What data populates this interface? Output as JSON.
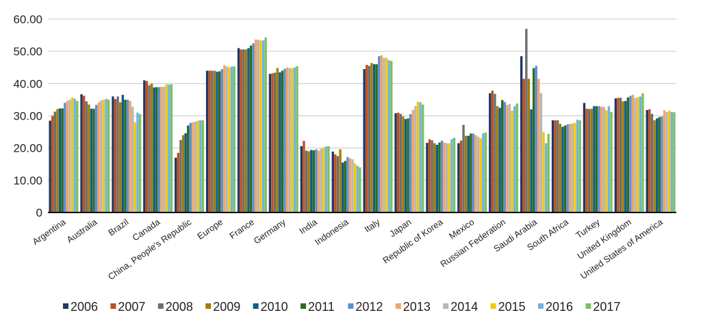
{
  "chart_data": {
    "type": "bar",
    "title": "",
    "xlabel": "",
    "ylabel": "",
    "ylim": [
      0,
      60
    ],
    "yticks": [
      "0",
      "10.00",
      "20.00",
      "30.00",
      "40.00",
      "50.00",
      "60.00"
    ],
    "grid": true,
    "legend_position": "bottom",
    "categories": [
      "Argentina",
      "Australia",
      "Brazil",
      "Canada",
      "China, People's Republic",
      "Europe",
      "France",
      "Germany",
      "India",
      "Indonesia",
      "Italy",
      "Japan",
      "Republic of Korea",
      "Mexico",
      "Russian Federation",
      "Saudi Arabia",
      "South Africa",
      "Turkey",
      "United Kingdom",
      "United States of America"
    ],
    "series": [
      {
        "name": "2006",
        "color": "#1f3864",
        "values": [
          28.5,
          36.7,
          36.0,
          41.0,
          17.0,
          44.0,
          51.0,
          43.0,
          20.6,
          18.9,
          44.5,
          30.8,
          21.6,
          21.5,
          37.0,
          48.5,
          28.6,
          34.0,
          35.4,
          31.8
        ]
      },
      {
        "name": "2007",
        "color": "#c0501a",
        "values": [
          30.0,
          36.2,
          35.2,
          40.8,
          18.5,
          44.0,
          50.6,
          43.2,
          22.2,
          18.0,
          45.8,
          31.0,
          22.7,
          22.3,
          37.8,
          41.5,
          28.6,
          32.2,
          35.6,
          32.0
        ]
      },
      {
        "name": "2008",
        "color": "#6d6e71",
        "values": [
          31.3,
          34.5,
          36.0,
          39.5,
          22.5,
          44.0,
          50.6,
          43.4,
          19.2,
          17.5,
          45.5,
          30.6,
          22.4,
          27.2,
          36.8,
          57.0,
          28.6,
          32.1,
          35.6,
          30.6
        ]
      },
      {
        "name": "2009",
        "color": "#a57c00",
        "values": [
          32.1,
          33.5,
          34.2,
          40.0,
          24.0,
          44.0,
          50.6,
          44.8,
          19.0,
          19.6,
          46.4,
          29.8,
          21.5,
          23.8,
          33.0,
          41.5,
          27.5,
          32.2,
          34.5,
          28.6
        ]
      },
      {
        "name": "2010",
        "color": "#0c5d8a",
        "values": [
          32.3,
          32.2,
          36.5,
          38.8,
          24.6,
          43.7,
          51.0,
          43.5,
          19.4,
          15.5,
          46.0,
          29.0,
          21.0,
          23.8,
          32.5,
          32.0,
          26.6,
          33.0,
          34.6,
          29.2
        ]
      },
      {
        "name": "2011",
        "color": "#2e6b1f",
        "values": [
          32.3,
          32.2,
          35.0,
          38.9,
          27.0,
          43.8,
          51.8,
          44.0,
          19.3,
          16.0,
          46.0,
          29.2,
          21.7,
          24.5,
          34.9,
          44.8,
          27.0,
          33.0,
          35.7,
          29.6
        ]
      },
      {
        "name": "2012",
        "color": "#5b8fd6",
        "values": [
          34.0,
          33.4,
          35.0,
          38.9,
          27.8,
          44.5,
          52.5,
          44.6,
          19.6,
          17.2,
          48.5,
          30.5,
          22.3,
          24.5,
          34.3,
          45.5,
          27.3,
          33.0,
          36.2,
          29.8
        ]
      },
      {
        "name": "2013",
        "color": "#f4a362",
        "values": [
          34.6,
          34.2,
          34.6,
          39.0,
          28.0,
          45.7,
          53.7,
          45.0,
          19.2,
          16.8,
          48.8,
          31.8,
          21.7,
          24.0,
          33.4,
          41.5,
          27.5,
          32.8,
          36.5,
          31.7
        ]
      },
      {
        "name": "2014",
        "color": "#b7b7b7",
        "values": [
          35.0,
          34.8,
          32.8,
          39.0,
          28.2,
          45.3,
          53.6,
          44.8,
          19.8,
          16.5,
          48.0,
          33.0,
          21.5,
          23.5,
          33.7,
          37.0,
          27.6,
          32.8,
          35.5,
          31.2
        ]
      },
      {
        "name": "2015",
        "color": "#f7c600",
        "values": [
          35.7,
          35.0,
          28.0,
          39.8,
          28.5,
          45.0,
          53.4,
          44.8,
          20.2,
          15.2,
          48.0,
          34.4,
          21.5,
          23.0,
          31.6,
          25.0,
          27.8,
          31.7,
          35.8,
          31.6
        ]
      },
      {
        "name": "2016",
        "color": "#6db3e6",
        "values": [
          35.3,
          35.3,
          31.0,
          39.7,
          28.6,
          45.3,
          53.4,
          45.0,
          20.5,
          14.5,
          47.3,
          34.2,
          22.8,
          24.6,
          33.0,
          21.5,
          28.8,
          33.0,
          36.0,
          31.2
        ]
      },
      {
        "name": "2017",
        "color": "#7cc15e",
        "values": [
          34.6,
          35.0,
          30.5,
          39.8,
          28.6,
          45.3,
          54.3,
          45.4,
          20.6,
          14.0,
          47.0,
          33.5,
          23.2,
          24.8,
          33.8,
          24.4,
          28.6,
          31.2,
          37.0,
          31.1
        ]
      }
    ]
  }
}
